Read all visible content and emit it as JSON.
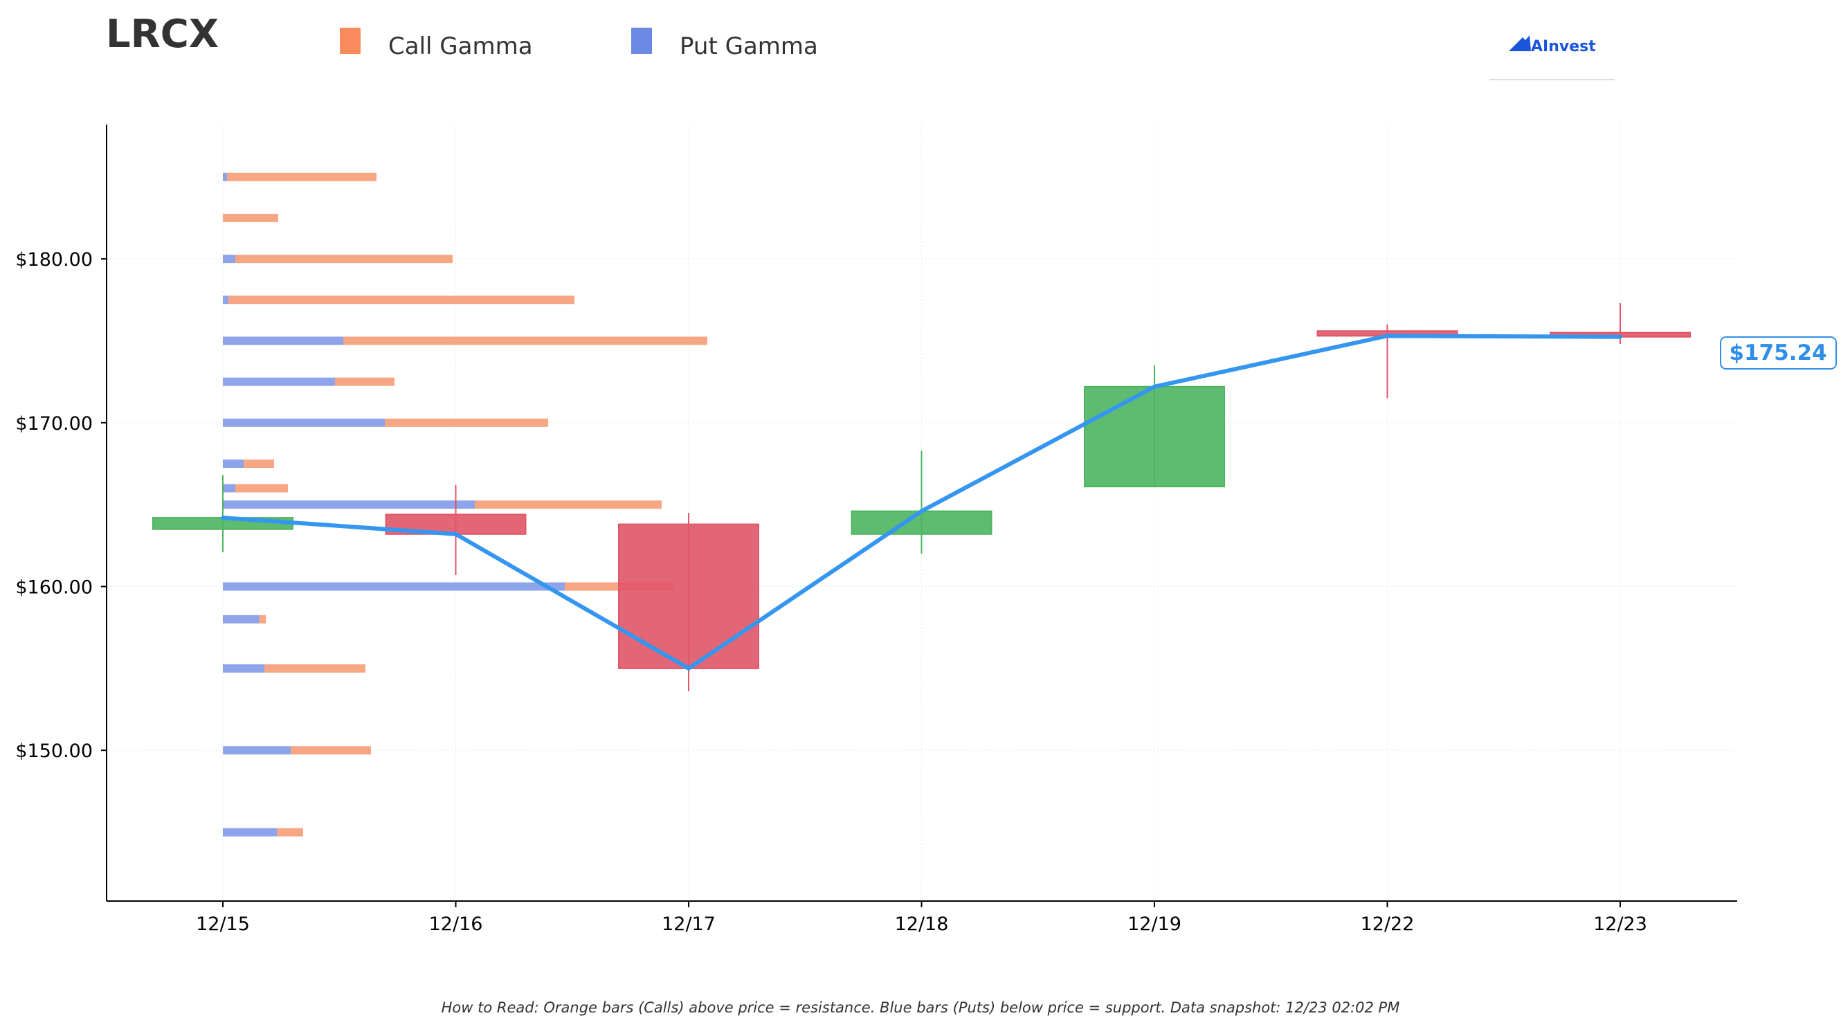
{
  "ticker": "LRCX",
  "brand": "AInvest",
  "footer_note": "How to Read: Orange bars (Calls) above price = resistance. Blue bars (Puts) below price = support. Data snapshot: 12/23 02:02 PM",
  "colors": {
    "call_gamma": "#f7a684",
    "put_gamma": "#8da3ea",
    "up_candle": "#4cb560",
    "down_candle": "#e05567",
    "price_line": "#3596f0"
  },
  "chart_data": {
    "type": "candlestick_gamma",
    "legend": [
      {
        "name": "Call Gamma",
        "color": "#fb8a5c"
      },
      {
        "name": "Put Gamma",
        "color": "#6a8ae6"
      }
    ],
    "legend_position": "top",
    "x_categories": [
      "12/15",
      "12/16",
      "12/17",
      "12/18",
      "12/19",
      "12/22",
      "12/23"
    ],
    "ylim": [
      140.8,
      188.2
    ],
    "y_ticks": [
      {
        "value": 150,
        "label": "$150.00"
      },
      {
        "value": 160,
        "label": "$160.00"
      },
      {
        "value": 170,
        "label": "$170.00"
      },
      {
        "value": 180,
        "label": "$180.00"
      }
    ],
    "grid": true,
    "candles": [
      {
        "date": "12/15",
        "open": 163.5,
        "high": 166.8,
        "low": 162.1,
        "close": 164.2
      },
      {
        "date": "12/16",
        "open": 164.4,
        "high": 166.2,
        "low": 160.7,
        "close": 163.2
      },
      {
        "date": "12/17",
        "open": 163.8,
        "high": 164.5,
        "low": 153.6,
        "close": 155.0
      },
      {
        "date": "12/18",
        "open": 163.2,
        "high": 168.3,
        "low": 162.0,
        "close": 164.6
      },
      {
        "date": "12/19",
        "open": 166.1,
        "high": 173.5,
        "low": 166.1,
        "close": 172.2
      },
      {
        "date": "12/22",
        "open": 175.6,
        "high": 176.0,
        "low": 171.5,
        "close": 175.3
      },
      {
        "date": "12/23",
        "open": 175.5,
        "high": 177.3,
        "low": 174.8,
        "close": 175.24
      }
    ],
    "price_line": [
      164.2,
      163.2,
      155.0,
      164.6,
      172.2,
      175.3,
      175.24
    ],
    "last_price_label": "$175.24",
    "gamma_levels": [
      {
        "strike": 145.0,
        "put": 0.39,
        "call": 0.19
      },
      {
        "strike": 150.0,
        "put": 0.49,
        "call": 0.58
      },
      {
        "strike": 155.0,
        "put": 0.3,
        "call": 0.73
      },
      {
        "strike": 158.0,
        "put": 0.26,
        "call": 0.05
      },
      {
        "strike": 160.0,
        "put": 2.47,
        "call": 0.79
      },
      {
        "strike": 165.0,
        "put": 1.82,
        "call": 1.35
      },
      {
        "strike": 166.0,
        "put": 0.09,
        "call": 0.38
      },
      {
        "strike": 167.5,
        "put": 0.15,
        "call": 0.22
      },
      {
        "strike": 170.0,
        "put": 1.17,
        "call": 1.18
      },
      {
        "strike": 172.5,
        "put": 0.81,
        "call": 0.43
      },
      {
        "strike": 175.0,
        "put": 0.87,
        "call": 2.63
      },
      {
        "strike": 177.5,
        "put": 0.04,
        "call": 2.5
      },
      {
        "strike": 180.0,
        "put": 0.09,
        "call": 1.57
      },
      {
        "strike": 182.5,
        "put": 0.0,
        "call": 0.4
      },
      {
        "strike": 185.0,
        "put": 0.03,
        "call": 1.08
      }
    ]
  }
}
